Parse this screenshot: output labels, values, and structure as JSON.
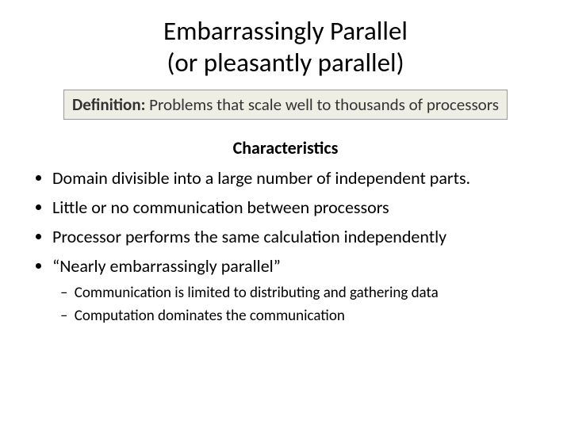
{
  "title_line1": "Embarrassingly Parallel",
  "title_line2": "(or pleasantly parallel)",
  "definition": {
    "label": "Definition:",
    "text": " Problems that scale well to thousands of processors"
  },
  "subheading": "Characteristics",
  "bullets": [
    "Domain divisible into a large number of independent parts.",
    "Little or no communication between processors",
    "Processor performs the same calculation independently",
    "“Nearly embarrassingly parallel”"
  ],
  "sub_bullets": [
    "Communication is limited to distributing and gathering data",
    "Computation dominates  the communication"
  ],
  "colors": {
    "background": "#ffffff",
    "text": "#000000",
    "definition_bg": "#eeeee4",
    "definition_border": "#999999"
  },
  "fonts": {
    "family": "Calibri",
    "title_size_pt": 33,
    "body_size_pt": 22,
    "sub_size_pt": 19
  }
}
